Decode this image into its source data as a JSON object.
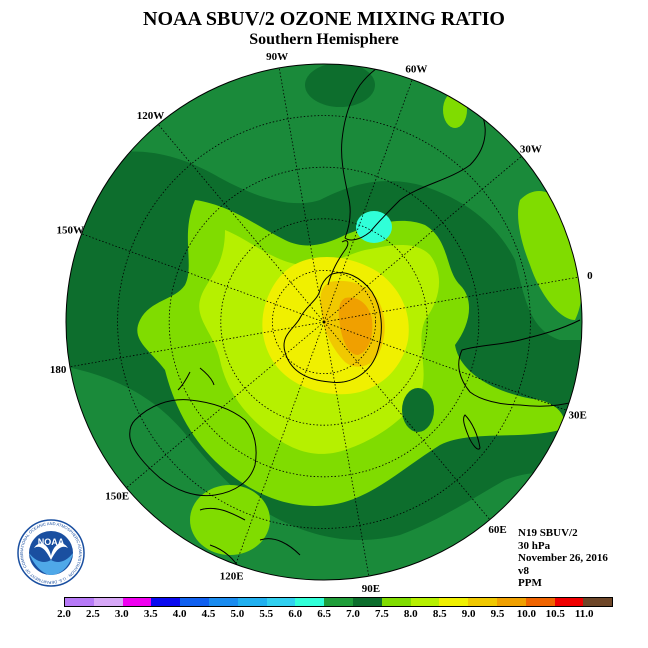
{
  "title": "NOAA SBUV/2 OZONE MIXING RATIO",
  "subtitle": "Southern Hemisphere",
  "longitude_labels": [
    "90W",
    "60W",
    "30W",
    "0",
    "30E",
    "60E",
    "90E",
    "120E",
    "150E",
    "180",
    "150W",
    "120W"
  ],
  "info": {
    "instrument": "N19 SBUV/2",
    "level": "30 hPa",
    "date": "November 26, 2016",
    "version": "v8",
    "units": "PPM"
  },
  "colorbar": {
    "ticks": [
      "2.0",
      "2.5",
      "3.0",
      "3.5",
      "4.0",
      "4.5",
      "5.0",
      "5.5",
      "6.0",
      "6.5",
      "7.0",
      "7.5",
      "8.0",
      "8.5",
      "9.0",
      "9.5",
      "10.0",
      "10.5",
      "11.0"
    ],
    "colors": [
      "#b77af7",
      "#d7a8f7",
      "#f000f0",
      "#0a0af0",
      "#1060f0",
      "#1a8cf0",
      "#20b0f0",
      "#30d0f0",
      "#30ffd8",
      "#1f9e3a",
      "#0d6e2d",
      "#80dc00",
      "#b6f000",
      "#f0f000",
      "#f0c800",
      "#f0a000",
      "#f06400",
      "#f00000",
      "#6e4628"
    ]
  },
  "map_colors": {
    "c6_5": "#1a8a3a",
    "c7_0": "#0d6e2d",
    "c7_5": "#80dc00",
    "c8_0": "#b6f000",
    "c8_5": "#f0f000",
    "c9_0": "#f0c800",
    "c9_5": "#f0a000",
    "c6_0": "#30ffd8",
    "coast": "#000000",
    "grid": "#000000"
  },
  "logo": {
    "text": "NOAA",
    "ring_text": "NATIONAL OCEANIC AND ATMOSPHERIC ADMINISTRATION · U.S. DEPARTMENT OF COMMERCE"
  }
}
